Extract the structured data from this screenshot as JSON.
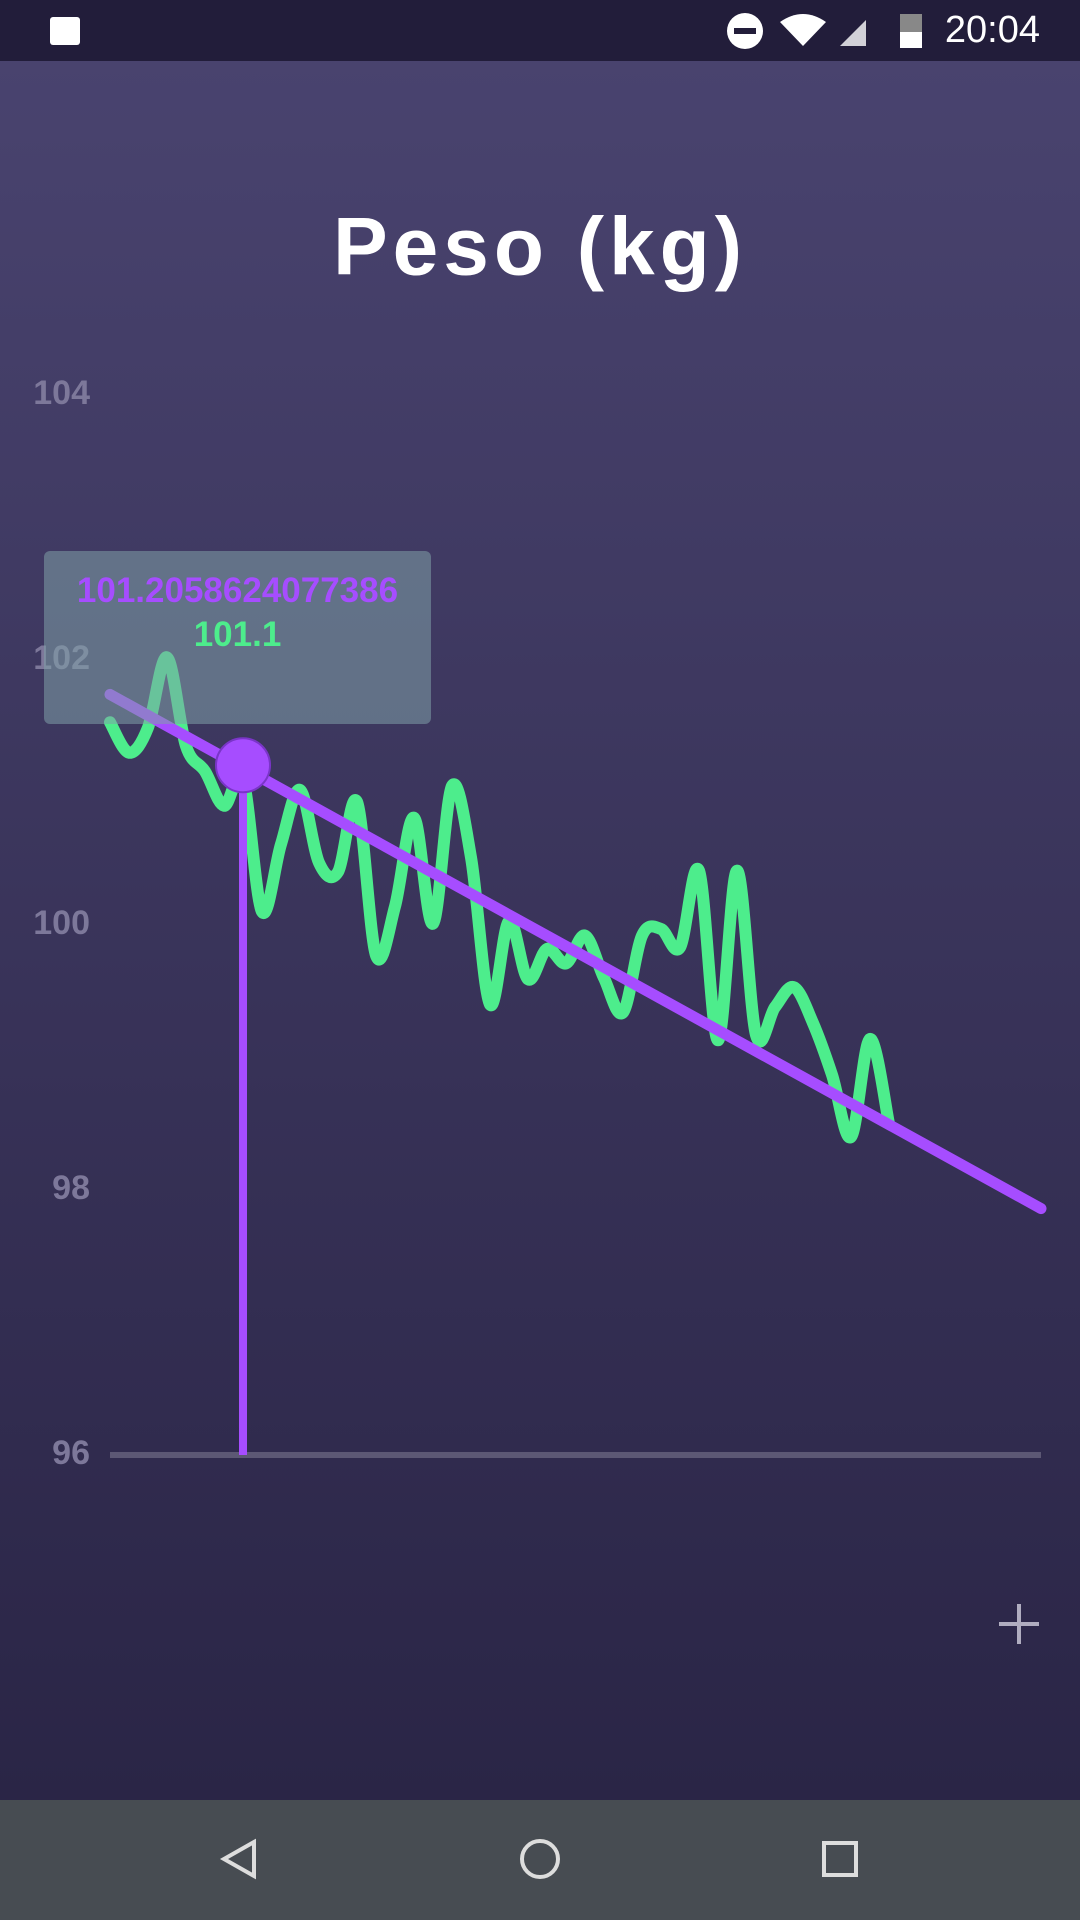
{
  "status_bar": {
    "time": "20:04"
  },
  "chart_data": {
    "type": "line",
    "title": "Peso (kg)",
    "ylim": [
      96,
      104
    ],
    "yticks": [
      96,
      98,
      100,
      102,
      104
    ],
    "xlim": [
      0,
      49
    ],
    "series": [
      {
        "color": "#4ded8c",
        "x": [
          0,
          1,
          2,
          3,
          4,
          5,
          6,
          7,
          8,
          9,
          10,
          11,
          12,
          13,
          14,
          15,
          16,
          17,
          18,
          19,
          20,
          21,
          22,
          23,
          24,
          25,
          26,
          27,
          28,
          29,
          30,
          31,
          32,
          33,
          34,
          35,
          36,
          37,
          38,
          39,
          40,
          41
        ],
        "values": [
          101.53,
          101.3,
          101.49,
          102.02,
          101.35,
          101.16,
          100.9,
          101.1,
          100.1,
          100.61,
          101.02,
          100.47,
          100.4,
          100.93,
          99.77,
          100.14,
          100.81,
          100.01,
          101.05,
          100.51,
          99.4,
          100.03,
          99.59,
          99.82,
          99.71,
          99.92,
          99.6,
          99.34,
          99.92,
          99.97,
          99.83,
          100.41,
          99.13,
          100.41,
          99.17,
          99.38,
          99.53,
          99.26,
          98.87,
          98.4,
          99.14,
          98.5
        ]
      },
      {
        "color": "#a64dff",
        "x": [
          0,
          49
        ],
        "values": [
          101.74,
          97.86
        ]
      }
    ],
    "tooltip": {
      "x": 7,
      "values": [
        101.2058624077386,
        101.1
      ]
    }
  }
}
